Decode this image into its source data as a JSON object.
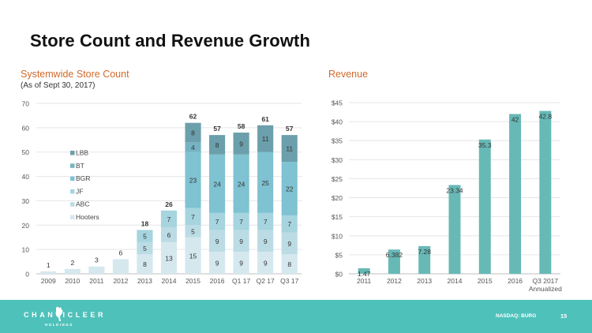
{
  "page": {
    "title": "Store Count and Revenue Growth",
    "footer": {
      "logo_text": "CHANTICLEER",
      "logo_subtext": "HOLDINGS",
      "ticker": "NASDAQ: BURG",
      "page_number": "15"
    }
  },
  "store_chart": {
    "heading": "Systemwide Store Count",
    "note": "(As of Sept 30, 2017)"
  },
  "revenue_chart": {
    "heading": "Revenue"
  },
  "chart_data": [
    {
      "type": "bar",
      "stacked": true,
      "title": "Systemwide Store Count",
      "subtitle": "(As of Sept 30, 2017)",
      "xlabel": "",
      "ylabel": "",
      "ylim": [
        0,
        70
      ],
      "yticks": [
        0,
        10,
        20,
        30,
        40,
        50,
        60,
        70
      ],
      "grid": true,
      "legend_position": "upper-left",
      "categories": [
        "2009",
        "2010",
        "2011",
        "2012",
        "2013",
        "2014",
        "2015",
        "2016",
        "Q1 17",
        "Q2 17",
        "Q3 17"
      ],
      "totals": [
        1,
        2,
        3,
        6,
        18,
        26,
        62,
        57,
        58,
        61,
        57
      ],
      "total_labels": [
        "1",
        "2",
        "3",
        "6",
        "18",
        "26",
        "62",
        "57",
        "58",
        "61",
        "57"
      ],
      "series": [
        {
          "name": "Hooters",
          "color": "#d5e8ee",
          "values": [
            1,
            2,
            3,
            6,
            8,
            13,
            15,
            9,
            9,
            9,
            8
          ]
        },
        {
          "name": "ABC",
          "color": "#bcdce5",
          "values": [
            0,
            0,
            0,
            0,
            5,
            6,
            5,
            9,
            9,
            9,
            9
          ]
        },
        {
          "name": "JF",
          "color": "#a6d4df",
          "values": [
            0,
            0,
            0,
            0,
            5,
            7,
            7,
            7,
            7,
            7,
            7
          ]
        },
        {
          "name": "BGR",
          "color": "#7fc2d2",
          "values": [
            0,
            0,
            0,
            0,
            0,
            0,
            23,
            24,
            24,
            25,
            22
          ]
        },
        {
          "name": "BT",
          "color": "#76b3c2",
          "values": [
            0,
            0,
            0,
            0,
            0,
            0,
            4,
            0,
            0,
            0,
            0
          ]
        },
        {
          "name": "LBB",
          "color": "#6b9fab",
          "values": [
            0,
            0,
            0,
            0,
            0,
            0,
            8,
            8,
            9,
            11,
            11
          ]
        }
      ],
      "legend_order": [
        "LBB",
        "BT",
        "BGR",
        "JF",
        "ABC",
        "Hooters"
      ]
    },
    {
      "type": "bar",
      "title": "Revenue",
      "xlabel": "",
      "ylabel": "",
      "ylim": [
        0,
        45
      ],
      "yticks": [
        "$0",
        "$5",
        "$10",
        "$15",
        "$20",
        "$25",
        "$30",
        "$35",
        "$40",
        "$45"
      ],
      "ytick_values": [
        0,
        5,
        10,
        15,
        20,
        25,
        30,
        35,
        40,
        45
      ],
      "grid": true,
      "color": "#67b9b6",
      "categories": [
        "2011",
        "2012",
        "2013",
        "2014",
        "2015",
        "2016",
        "Q3 2017\nAnnualized"
      ],
      "values": [
        1.47,
        6.382,
        7.28,
        23.34,
        35.3,
        42,
        42.8
      ],
      "data_labels": [
        "1.47",
        "6.382",
        "7.28",
        "23.34",
        "35.3",
        "42",
        "42.8"
      ]
    }
  ]
}
